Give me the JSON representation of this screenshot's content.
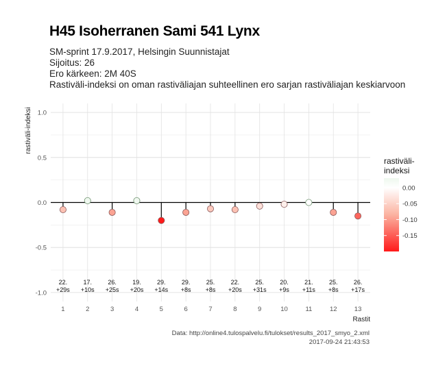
{
  "header": {
    "title": "H45 Isoherranen Sami 541 Lynx",
    "subtitle_lines": [
      "SM-sprint 17.9.2017, Helsingin Suunnistajat",
      "Sijoitus: 26",
      "Ero kärkeen: 2M 40S",
      "Rastiväli-indeksi on oman rastiväliajan suhteellinen ero sarjan rastiväliajan keskiarvoon"
    ]
  },
  "caption": {
    "line1": "Data: http://online4.tulospalvelu.fi/tulokset/results_2017_smyo_2.xml",
    "line2": "2017-09-24 21:43:53"
  },
  "chart_data": {
    "type": "scatter",
    "xlabel": "Rastit",
    "ylabel": "rastiväli-indeksi",
    "ylim": [
      -1.0,
      1.0
    ],
    "yticks": [
      "1.0",
      "0.5",
      "0.0",
      "-0.5",
      "-1.0"
    ],
    "ytick_values": [
      1.0,
      0.5,
      0.0,
      -0.5,
      -1.0
    ],
    "x": [
      1,
      2,
      3,
      4,
      5,
      6,
      7,
      8,
      9,
      10,
      11,
      12,
      13
    ],
    "values": [
      -0.08,
      0.02,
      -0.11,
      0.02,
      -0.2,
      -0.11,
      -0.07,
      -0.08,
      -0.04,
      -0.02,
      0.0,
      -0.11,
      -0.15
    ],
    "point_labels": [
      [
        "22.",
        "+29s"
      ],
      [
        "17.",
        "+10s"
      ],
      [
        "26.",
        "+25s"
      ],
      [
        "19.",
        "+20s"
      ],
      [
        "29.",
        "+14s"
      ],
      [
        "29.",
        "+8s"
      ],
      [
        "25.",
        "+8s"
      ],
      [
        "22.",
        "+20s"
      ],
      [
        "25.",
        "+31s"
      ],
      [
        "20.",
        "+9s"
      ],
      [
        "21.",
        "+11s"
      ],
      [
        "25.",
        "+8s"
      ],
      [
        "26.",
        "+17s"
      ]
    ],
    "legend": {
      "title_lines": [
        "rastiväli-",
        "indeksi"
      ],
      "ticks": [
        "0.00",
        "-0.05",
        "-0.10",
        "-0.15"
      ],
      "tick_values": [
        0.0,
        -0.05,
        -0.1,
        -0.15
      ],
      "range": [
        -0.2,
        0.03
      ],
      "placement": "right"
    },
    "colors": {
      "low": "#ff0000",
      "mid": "#ffffff",
      "high": "#e8f5e9",
      "grid": "#e0e0e0",
      "zero_line": "#000000"
    },
    "grid": true
  }
}
